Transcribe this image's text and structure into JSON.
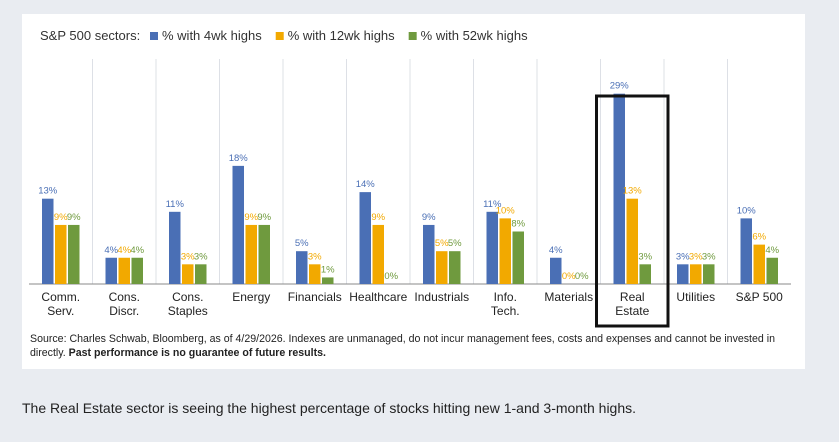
{
  "chart_data": {
    "type": "bar",
    "title": "S&P 500 sectors:",
    "categories": [
      "Comm.\nServ.",
      "Cons.\nDiscr.",
      "Cons.\nStaples",
      "Energy",
      "Financials",
      "Healthcare",
      "Industrials",
      "Info.\nTech.",
      "Materials",
      "Real\nEstate",
      "Utilities",
      "S&P 500"
    ],
    "series": [
      {
        "name": "% with 4wk highs",
        "color": "#4a6fb5",
        "values": [
          13,
          4,
          11,
          18,
          5,
          14,
          9,
          11,
          4,
          29,
          3,
          10
        ]
      },
      {
        "name": "% with 12wk highs",
        "color": "#f2a900",
        "values": [
          9,
          4,
          3,
          9,
          3,
          9,
          5,
          10,
          0,
          13,
          3,
          6
        ]
      },
      {
        "name": "% with 52wk highs",
        "color": "#6f9a3e",
        "values": [
          9,
          4,
          3,
          9,
          1,
          0,
          5,
          8,
          0,
          3,
          3,
          4
        ]
      }
    ],
    "value_suffix": "%",
    "ylim": [
      0,
      32
    ],
    "grid": false,
    "legend_position": "top",
    "highlight_category": "Real\nEstate"
  },
  "source": {
    "text": "Source: Charles Schwab, Bloomberg, as of 4/29/2026. Indexes are unmanaged, do not incur management fees, costs and expenses and cannot be invested in directly.",
    "disclaimer": "Past performance is no guarantee of future results."
  },
  "caption": "The Real Estate sector is seeing the highest percentage of stocks hitting new 1-and 3-month highs."
}
